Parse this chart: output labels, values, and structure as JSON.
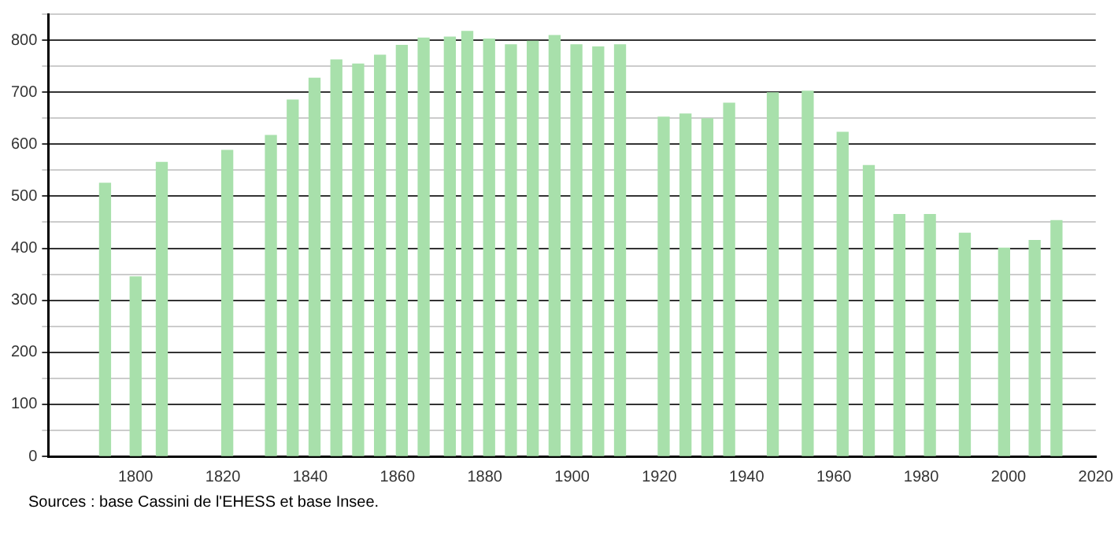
{
  "chart_data": {
    "type": "bar",
    "x": [
      1793,
      1800,
      1806,
      1821,
      1831,
      1836,
      1841,
      1846,
      1851,
      1856,
      1861,
      1866,
      1872,
      1876,
      1881,
      1886,
      1891,
      1896,
      1901,
      1906,
      1911,
      1921,
      1926,
      1931,
      1936,
      1946,
      1954,
      1962,
      1968,
      1975,
      1982,
      1990,
      1999,
      2006,
      2011
    ],
    "values": [
      525,
      345,
      565,
      588,
      617,
      685,
      727,
      762,
      754,
      771,
      790,
      804,
      806,
      817,
      802,
      791,
      798,
      809,
      791,
      787,
      791,
      652,
      658,
      649,
      679,
      699,
      702,
      623,
      559,
      465,
      465,
      429,
      400,
      415,
      453
    ],
    "color": "#a8e0ab",
    "xlim": [
      1780,
      2020
    ],
    "xticks": [
      1800,
      1820,
      1840,
      1860,
      1880,
      1900,
      1920,
      1940,
      1960,
      1980,
      2000,
      2020
    ],
    "ylim": [
      0,
      850
    ],
    "yticks": [
      0,
      {
        "value": 50,
        "label": null
      },
      100,
      {
        "value": 150,
        "label": null
      },
      200,
      {
        "value": 250,
        "label": null
      },
      300,
      {
        "value": 350,
        "label": null
      },
      400,
      {
        "value": 450,
        "label": null
      },
      500,
      {
        "value": 550,
        "label": null
      },
      600,
      {
        "value": 650,
        "label": null
      },
      700,
      {
        "value": 750,
        "label": null
      },
      800,
      {
        "value": 850,
        "label": null
      }
    ],
    "grid": "y",
    "legend": false,
    "annotations": [
      "Sources : base Cassini de l'EHESS et base Insee."
    ]
  }
}
